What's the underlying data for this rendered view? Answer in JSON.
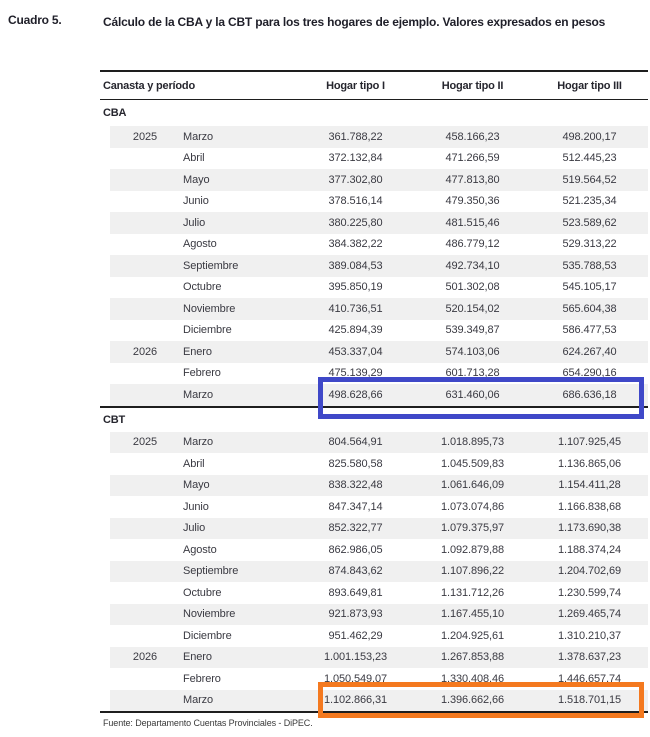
{
  "document": {
    "label": "Cuadro 5.",
    "title": "Cálculo de la CBA y la CBT para los tres hogares de ejemplo. Valores expresados en pesos",
    "source": "Fuente: Departamento Cuentas Provinciales - DiPEC."
  },
  "table": {
    "columns": {
      "canasta": "Canasta y período",
      "hogar1": "Hogar tipo I",
      "hogar2": "Hogar tipo II",
      "hogar3": "Hogar tipo III"
    },
    "sections": [
      {
        "name": "CBA",
        "rows": [
          {
            "year": "2025",
            "month": "Marzo",
            "values": [
              "361.788,22",
              "458.166,23",
              "498.200,17"
            ]
          },
          {
            "year": "",
            "month": "Abril",
            "values": [
              "372.132,84",
              "471.266,59",
              "512.445,23"
            ]
          },
          {
            "year": "",
            "month": "Mayo",
            "values": [
              "377.302,80",
              "477.813,80",
              "519.564,52"
            ]
          },
          {
            "year": "",
            "month": "Junio",
            "values": [
              "378.516,14",
              "479.350,36",
              "521.235,34"
            ]
          },
          {
            "year": "",
            "month": "Julio",
            "values": [
              "380.225,80",
              "481.515,46",
              "523.589,62"
            ]
          },
          {
            "year": "",
            "month": "Agosto",
            "values": [
              "384.382,22",
              "486.779,12",
              "529.313,22"
            ]
          },
          {
            "year": "",
            "month": "Septiembre",
            "values": [
              "389.084,53",
              "492.734,10",
              "535.788,53"
            ]
          },
          {
            "year": "",
            "month": "Octubre",
            "values": [
              "395.850,19",
              "501.302,08",
              "545.105,17"
            ]
          },
          {
            "year": "",
            "month": "Noviembre",
            "values": [
              "410.736,51",
              "520.154,02",
              "565.604,38"
            ]
          },
          {
            "year": "",
            "month": "Diciembre",
            "values": [
              "425.894,39",
              "539.349,87",
              "586.477,53"
            ]
          },
          {
            "year": "2026",
            "month": "Enero",
            "values": [
              "453.337,04",
              "574.103,06",
              "624.267,40"
            ]
          },
          {
            "year": "",
            "month": "Febrero",
            "values": [
              "475.139,29",
              "601.713,28",
              "654.290,16"
            ]
          },
          {
            "year": "",
            "month": "Marzo",
            "values": [
              "498.628,66",
              "631.460,06",
              "686.636,18"
            ]
          }
        ]
      },
      {
        "name": "CBT",
        "rows": [
          {
            "year": "2025",
            "month": "Marzo",
            "values": [
              "804.564,91",
              "1.018.895,73",
              "1.107.925,45"
            ]
          },
          {
            "year": "",
            "month": "Abril",
            "values": [
              "825.580,58",
              "1.045.509,83",
              "1.136.865,06"
            ]
          },
          {
            "year": "",
            "month": "Mayo",
            "values": [
              "838.322,48",
              "1.061.646,09",
              "1.154.411,28"
            ]
          },
          {
            "year": "",
            "month": "Junio",
            "values": [
              "847.347,14",
              "1.073.074,86",
              "1.166.838,68"
            ]
          },
          {
            "year": "",
            "month": "Julio",
            "values": [
              "852.322,77",
              "1.079.375,97",
              "1.173.690,38"
            ]
          },
          {
            "year": "",
            "month": "Agosto",
            "values": [
              "862.986,05",
              "1.092.879,88",
              "1.188.374,24"
            ]
          },
          {
            "year": "",
            "month": "Septiembre",
            "values": [
              "874.843,62",
              "1.107.896,22",
              "1.204.702,69"
            ]
          },
          {
            "year": "",
            "month": "Octubre",
            "values": [
              "893.649,81",
              "1.131.712,26",
              "1.230.599,74"
            ]
          },
          {
            "year": "",
            "month": "Noviembre",
            "values": [
              "921.873,93",
              "1.167.455,10",
              "1.269.465,74"
            ]
          },
          {
            "year": "",
            "month": "Diciembre",
            "values": [
              "951.462,29",
              "1.204.925,61",
              "1.310.210,37"
            ]
          },
          {
            "year": "2026",
            "month": "Enero",
            "values": [
              "1.001.153,23",
              "1.267.853,88",
              "1.378.637,23"
            ]
          },
          {
            "year": "",
            "month": "Febrero",
            "values": [
              "1.050.549,07",
              "1.330.408,46",
              "1.446.657,74"
            ]
          },
          {
            "year": "",
            "month": "Marzo",
            "values": [
              "1.102.866,31",
              "1.396.662,66",
              "1.518.701,15"
            ]
          }
        ]
      }
    ]
  },
  "highlights": {
    "cba_marzo_2026": {
      "label": "CBA Marzo 2026 highlight",
      "color": "#3f48c8"
    },
    "cbt_marzo_2026": {
      "label": "CBT Marzo 2026 highlight",
      "color": "#f4791f"
    }
  }
}
